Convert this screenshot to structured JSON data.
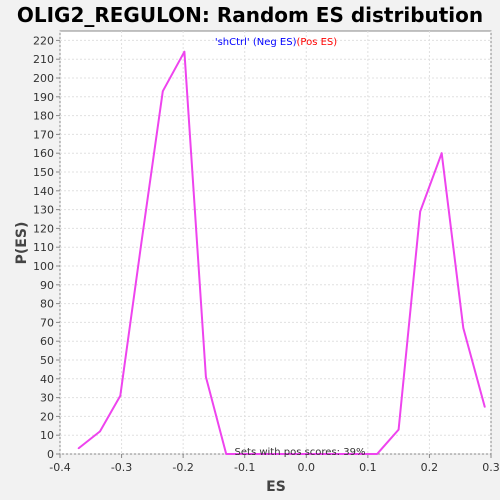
{
  "chart_data": {
    "type": "line",
    "title": "OLIG2_REGULON: Random ES distribution",
    "xlabel": "ES",
    "ylabel": "P(ES)",
    "xlim": [
      -0.4,
      0.3
    ],
    "ylim": [
      0,
      225
    ],
    "xticks": [
      -0.4,
      -0.3,
      -0.2,
      -0.1,
      0.0,
      0.1,
      0.2,
      0.3
    ],
    "xtick_labels": [
      "-0.4",
      "-0.3",
      "-0.2",
      "-0.1",
      "0.0",
      "0.1",
      "0.2",
      "0.3"
    ],
    "yticks": [
      0,
      10,
      20,
      30,
      40,
      50,
      60,
      70,
      80,
      90,
      100,
      110,
      120,
      130,
      140,
      150,
      160,
      170,
      180,
      190,
      200,
      210,
      220
    ],
    "grid": true,
    "legend": {
      "placement": "top-center",
      "entries": [
        {
          "text": "'shCtrl' (Neg ES)",
          "color": "#0000ff"
        },
        {
          "text": "(Pos ES)",
          "color": "#ff0000"
        }
      ]
    },
    "annotation": "Sets with pos scores: 39%",
    "series": [
      {
        "color": "#ee44ee",
        "points": [
          [
            -0.37,
            3
          ],
          [
            -0.335,
            12
          ],
          [
            -0.302,
            31
          ],
          [
            -0.268,
            112
          ],
          [
            -0.233,
            193
          ],
          [
            -0.198,
            214
          ],
          [
            -0.163,
            41
          ],
          [
            -0.13,
            0
          ],
          [
            -0.095,
            0
          ],
          [
            -0.06,
            0
          ],
          [
            -0.025,
            0
          ],
          [
            0.01,
            0
          ],
          [
            0.045,
            0
          ],
          [
            0.08,
            0
          ],
          [
            0.115,
            0
          ],
          [
            0.15,
            13
          ],
          [
            0.185,
            129
          ],
          [
            0.22,
            160
          ],
          [
            0.255,
            67
          ],
          [
            0.29,
            25
          ]
        ]
      }
    ]
  }
}
